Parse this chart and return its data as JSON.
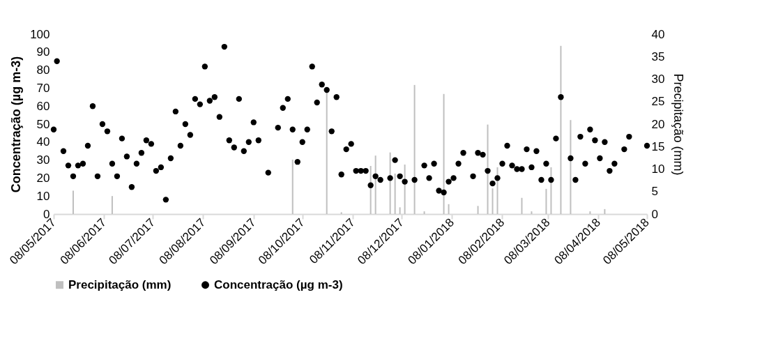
{
  "chart_data": {
    "type": "scatter",
    "ylabel": "Concentração (µg m-3)",
    "y2label": "Precipitação (mm)",
    "legend": "bottom",
    "xlim": [
      "2017-05-08",
      "2018-05-08"
    ],
    "xticks": [
      {
        "value": "2017-05-08",
        "label": "08/05/2017"
      },
      {
        "value": "2017-06-08",
        "label": "08/06/2017"
      },
      {
        "value": "2017-07-08",
        "label": "08/07/2017"
      },
      {
        "value": "2017-08-08",
        "label": "08/08/2017"
      },
      {
        "value": "2017-09-08",
        "label": "08/09/2017"
      },
      {
        "value": "2017-10-08",
        "label": "08/10/2017"
      },
      {
        "value": "2017-11-08",
        "label": "08/11/2017"
      },
      {
        "value": "2017-12-08",
        "label": "08/12/2017"
      },
      {
        "value": "2018-01-08",
        "label": "08/01/2018"
      },
      {
        "value": "2018-02-08",
        "label": "08/02/2018"
      },
      {
        "value": "2018-03-08",
        "label": "08/03/2018"
      },
      {
        "value": "2018-04-08",
        "label": "08/04/2018"
      },
      {
        "value": "2018-05-08",
        "label": "08/05/2018"
      }
    ],
    "ylim": [
      0,
      100
    ],
    "yticks": [
      0,
      10,
      20,
      30,
      40,
      50,
      60,
      70,
      80,
      90,
      100
    ],
    "y2lim": [
      0,
      40
    ],
    "y2ticks": [
      0,
      5,
      10,
      15,
      20,
      25,
      30,
      35,
      40
    ],
    "series": [
      {
        "name": "Precipitação (mm)",
        "type": "bar",
        "axis": "y2",
        "color": "#bfbfbf",
        "x": [
          "2017-05-20",
          "2017-06-13",
          "2017-10-02",
          "2017-10-23",
          "2017-11-01",
          "2017-11-19",
          "2017-11-22",
          "2017-12-01",
          "2017-12-04",
          "2017-12-07",
          "2017-12-10",
          "2017-12-16",
          "2017-12-22",
          "2018-01-03",
          "2018-01-06",
          "2018-01-24",
          "2018-01-30",
          "2018-02-02",
          "2018-02-05",
          "2018-02-20",
          "2018-02-26",
          "2018-03-07",
          "2018-03-10",
          "2018-03-16",
          "2018-03-22",
          "2018-04-03",
          "2018-04-12"
        ],
        "values": [
          5.2,
          4.0,
          12.1,
          27.1,
          0.4,
          10.7,
          13.0,
          13.7,
          9.0,
          1.5,
          11.0,
          28.7,
          0.6,
          26.7,
          2.2,
          1.8,
          19.9,
          5.7,
          10.4,
          3.6,
          0.6,
          5.6,
          10.4,
          37.4,
          20.9,
          0.6,
          1.1
        ]
      },
      {
        "name": "Concentração (µg m-3)",
        "axis": "y",
        "color": "#000000",
        "marker": "circle",
        "x": [
          "2017-05-08",
          "2017-05-10",
          "2017-05-14",
          "2017-05-17",
          "2017-05-20",
          "2017-05-23",
          "2017-05-26",
          "2017-05-29",
          "2017-06-01",
          "2017-06-04",
          "2017-06-07",
          "2017-06-10",
          "2017-06-13",
          "2017-06-16",
          "2017-06-19",
          "2017-06-22",
          "2017-06-25",
          "2017-06-28",
          "2017-07-01",
          "2017-07-04",
          "2017-07-07",
          "2017-07-10",
          "2017-07-13",
          "2017-07-16",
          "2017-07-19",
          "2017-07-22",
          "2017-07-25",
          "2017-07-28",
          "2017-07-31",
          "2017-08-03",
          "2017-08-06",
          "2017-08-09",
          "2017-08-12",
          "2017-08-15",
          "2017-08-18",
          "2017-08-21",
          "2017-08-24",
          "2017-08-27",
          "2017-08-30",
          "2017-09-02",
          "2017-09-05",
          "2017-09-08",
          "2017-09-11",
          "2017-09-17",
          "2017-09-23",
          "2017-09-26",
          "2017-09-29",
          "2017-10-02",
          "2017-10-05",
          "2017-10-08",
          "2017-10-11",
          "2017-10-14",
          "2017-10-17",
          "2017-10-20",
          "2017-10-23",
          "2017-10-26",
          "2017-10-29",
          "2017-11-01",
          "2017-11-04",
          "2017-11-07",
          "2017-11-10",
          "2017-11-13",
          "2017-11-16",
          "2017-11-19",
          "2017-11-22",
          "2017-11-25",
          "2017-12-01",
          "2017-12-04",
          "2017-12-07",
          "2017-12-10",
          "2017-12-16",
          "2017-12-22",
          "2017-12-25",
          "2017-12-28",
          "2017-12-31",
          "2018-01-03",
          "2018-01-06",
          "2018-01-09",
          "2018-01-12",
          "2018-01-15",
          "2018-01-21",
          "2018-01-24",
          "2018-01-27",
          "2018-01-30",
          "2018-02-02",
          "2018-02-05",
          "2018-02-08",
          "2018-02-11",
          "2018-02-14",
          "2018-02-17",
          "2018-02-20",
          "2018-02-23",
          "2018-02-26",
          "2018-03-01",
          "2018-03-04",
          "2018-03-07",
          "2018-03-10",
          "2018-03-13",
          "2018-03-16",
          "2018-03-22",
          "2018-03-25",
          "2018-03-28",
          "2018-03-31",
          "2018-04-03",
          "2018-04-06",
          "2018-04-09",
          "2018-04-12",
          "2018-04-15",
          "2018-04-18",
          "2018-04-24",
          "2018-04-27",
          "2018-05-08"
        ],
        "values": [
          47,
          85,
          35,
          27,
          21,
          27,
          28,
          38,
          60,
          21,
          50,
          46,
          28,
          21,
          42,
          32,
          15,
          28,
          34,
          41,
          39,
          24,
          26,
          8,
          31,
          57,
          38,
          50,
          44,
          64,
          61,
          82,
          63,
          65,
          54,
          93,
          41,
          37,
          64,
          35,
          40,
          51,
          41,
          23,
          48,
          59,
          64,
          47,
          29,
          40,
          47,
          82,
          62,
          72,
          69,
          46,
          65,
          22,
          36,
          39,
          24,
          24,
          24,
          16,
          21,
          19,
          20,
          30,
          21,
          18,
          19,
          27,
          20,
          28,
          13,
          12,
          18,
          20,
          28,
          34,
          21,
          34,
          33,
          24,
          17,
          20,
          28,
          38,
          27,
          25,
          25,
          36,
          26,
          35,
          19,
          28,
          19,
          42,
          65,
          31,
          19,
          43,
          28,
          47,
          41,
          31,
          40,
          24,
          28,
          36,
          43,
          38
        ]
      }
    ]
  }
}
